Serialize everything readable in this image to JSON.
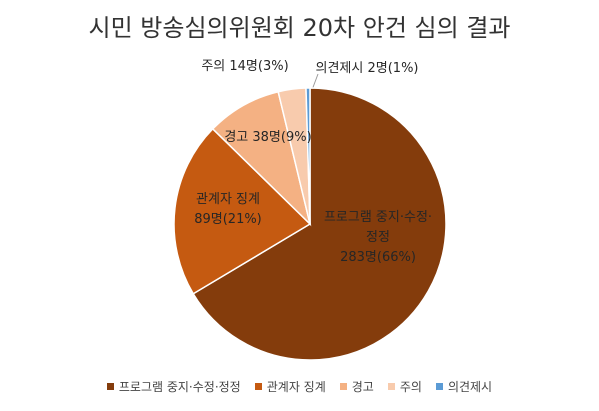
{
  "chart_data": {
    "type": "pie",
    "title": "시민 방송심의위원회 20차 안건 심의 결과",
    "categories": [
      "프로그램 중지·수정·정정",
      "관계자 징계",
      "경고",
      "주의",
      "의견제시"
    ],
    "values": [
      283,
      89,
      38,
      14,
      2
    ],
    "value_labels": [
      "283명(66%)",
      "89명(21%)",
      "38명(9%)",
      "14명(3%)",
      "2명(1%)"
    ],
    "colors": [
      "#843c0c",
      "#c55a11",
      "#f4b183",
      "#f8cbad",
      "#5b9bd5"
    ],
    "legend": "bottom"
  }
}
